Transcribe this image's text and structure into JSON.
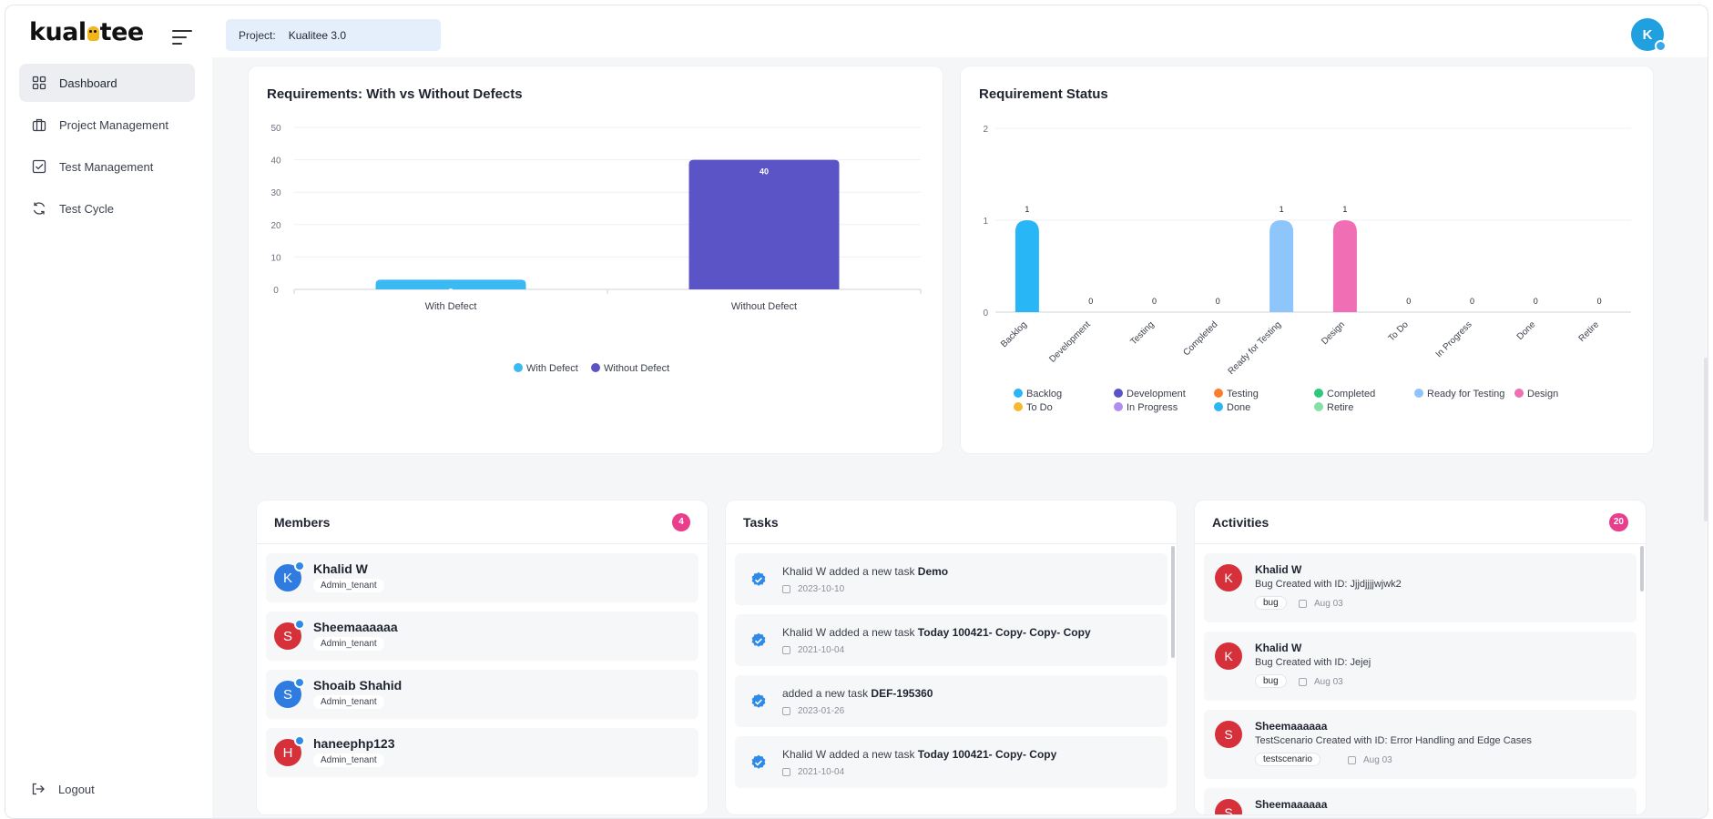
{
  "app": {
    "logo_text_left": "kual",
    "logo_text_right": "tee",
    "user_initial": "K"
  },
  "sidebar": {
    "items": [
      {
        "label": "Dashboard",
        "icon": "dashboard-grid-icon",
        "active": true
      },
      {
        "label": "Project Management",
        "icon": "briefcase-icon",
        "active": false
      },
      {
        "label": "Test Management",
        "icon": "checkbox-icon",
        "active": false
      },
      {
        "label": "Test Cycle",
        "icon": "refresh-cycle-icon",
        "active": false
      }
    ],
    "logout_label": "Logout"
  },
  "header": {
    "project_label": "Project:",
    "project_value": "Kualitee 3.0"
  },
  "colors": {
    "accent": "#2d8ae6",
    "with_defect": "#3bb9f3",
    "without_defect": "#5b54c6",
    "badge": "#e83e8c"
  },
  "chart_data": [
    {
      "type": "bar",
      "title": "Requirements: With vs Without Defects",
      "categories": [
        "With Defect",
        "Without Defect"
      ],
      "values": [
        3,
        40
      ],
      "colors": [
        "#3bb9f3",
        "#5b54c6"
      ],
      "ylim": [
        0,
        50
      ],
      "yticks": [
        0,
        10,
        20,
        30,
        40,
        50
      ],
      "legend": [
        "With Defect",
        "Without Defect"
      ],
      "legend_position": "bottom",
      "grid": true
    },
    {
      "type": "bar",
      "title": "Requirement Status",
      "categories": [
        "Backlog",
        "Development",
        "Testing",
        "Completed",
        "Ready for Testing",
        "Design",
        "To Do",
        "In Progress",
        "Done",
        "Retire"
      ],
      "values": [
        1,
        0,
        0,
        0,
        1,
        1,
        0,
        0,
        0,
        0
      ],
      "colors": [
        "#29b6f6",
        "#5b54c6",
        "#fb7c2b",
        "#2cc97a",
        "#8ec5fb",
        "#f06fb4",
        "#f5b82e",
        "#b38cf0",
        "#2cb6f0",
        "#84e0a5"
      ],
      "ylim": [
        0,
        2
      ],
      "yticks": [
        0,
        1,
        2
      ],
      "legend": [
        "Backlog",
        "Development",
        "Testing",
        "Completed",
        "Ready for Testing",
        "Design",
        "To Do",
        "In Progress",
        "Done",
        "Retire"
      ],
      "legend_position": "bottom",
      "grid": true
    }
  ],
  "members": {
    "title": "Members",
    "count": "4",
    "items": [
      {
        "initial": "K",
        "name": "Khalid W",
        "role": "Admin_tenant",
        "color": "#2f7be0"
      },
      {
        "initial": "S",
        "name": "Sheemaaaaaa",
        "role": "Admin_tenant",
        "color": "#d6303b"
      },
      {
        "initial": "S",
        "name": "Shoaib Shahid",
        "role": "Admin_tenant",
        "color": "#2f7be0"
      },
      {
        "initial": "H",
        "name": "haneephp123",
        "role": "Admin_tenant",
        "color": "#d6303b"
      }
    ]
  },
  "tasks": {
    "title": "Tasks",
    "items": [
      {
        "actor": "Khalid W",
        "action": "added a new task",
        "task": "Demo",
        "date": "2023-10-10"
      },
      {
        "actor": "Khalid W",
        "action": "added a new task",
        "task": "Today 100421- Copy- Copy- Copy",
        "date": "2021-10-04"
      },
      {
        "actor": "",
        "action": "added a new task",
        "task": "DEF-195360",
        "date": "2023-01-26"
      },
      {
        "actor": "Khalid W",
        "action": "added a new task",
        "task": "Today 100421- Copy- Copy",
        "date": "2021-10-04"
      }
    ]
  },
  "activities": {
    "title": "Activities",
    "count": "20",
    "items": [
      {
        "initial": "K",
        "name": "Khalid W",
        "desc": "Bug Created with ID: Jjjdjjjjwjwk2",
        "tag": "bug",
        "date": "Aug 03"
      },
      {
        "initial": "K",
        "name": "Khalid W",
        "desc": "Bug Created with ID: Jejej",
        "tag": "bug",
        "date": "Aug 03"
      },
      {
        "initial": "S",
        "name": "Sheemaaaaaa",
        "desc": "TestScenario Created with ID: Error Handling and Edge Cases",
        "tag": "testscenario",
        "date": "Aug 03"
      },
      {
        "initial": "S",
        "name": "Sheemaaaaaa",
        "desc": "",
        "tag": "",
        "date": ""
      }
    ]
  }
}
